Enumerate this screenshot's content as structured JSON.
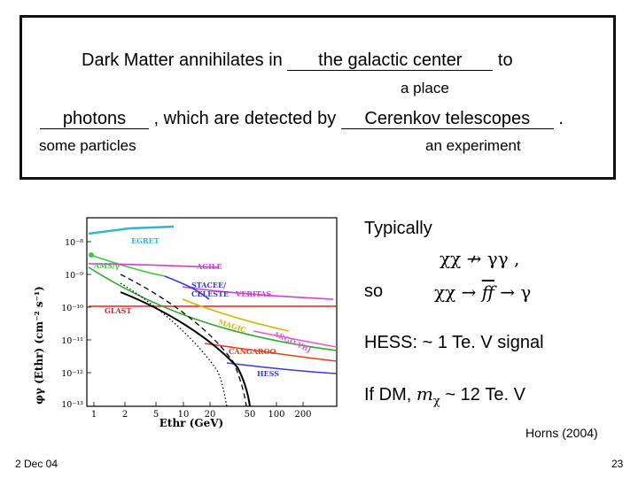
{
  "box": {
    "line1_pre": "Dark Matter annihilates in ",
    "blank1": "the galactic center",
    "line1_post": " to",
    "hint1": "a place",
    "blank2": "photons",
    "line2_mid": " , which are detected by ",
    "blank3": "Cerenkov telescopes",
    "line2_post": " .",
    "hint2": "some particles",
    "hint3": "an experiment"
  },
  "right": {
    "typically": "Typically",
    "eq1": "χχ",
    "eq1_arrow": "↛",
    "eq1_rhs": "γγ ,",
    "so": "so",
    "eq2_lhs": "χχ",
    "eq2_arrow1": "→",
    "eq2_mid": "ff",
    "eq2_arrow2": "→",
    "eq2_rhs": "γ",
    "hess": "HESS: ~ 1 Te. V signal",
    "ifdm_pre": "If DM,",
    "ifdm_m": "m",
    "ifdm_sub": "χ",
    "ifdm_post": "~ 12 Te. V",
    "citation": "Horns (2004)"
  },
  "footer": {
    "date": "2 Dec 04",
    "page": "23"
  },
  "plot": {
    "ylabel": "φγ (Ethr) (cm⁻² s⁻¹)",
    "xlabel": "Ethr (GeV)",
    "yticks": [
      "10⁻⁸",
      "10⁻⁹",
      "10⁻¹⁰",
      "10⁻¹¹",
      "10⁻¹²",
      "10⁻¹³"
    ],
    "xticks": [
      "1",
      "2",
      "5",
      "10",
      "20",
      "50",
      "100",
      "200"
    ],
    "labels": {
      "egret": "EGRET",
      "ams": "AMS/γ",
      "agile": "AGILE",
      "stacee": "STACEE/",
      "celeste": "CELESTE",
      "veritas": "VERITAS",
      "glast": "GLAST",
      "magic": "MAGIC",
      "argo": "ARGO-YBJ",
      "cangaroo": "CANGAROO",
      "hess": "HESS"
    },
    "colors": {
      "egret": "#2fb7c9",
      "ams": "#3cc83c",
      "agile": "#d23fd2",
      "stacee": "#3b3bd0",
      "veritas": "#d23fd2",
      "glast": "#e02424",
      "magic": "#d4b800",
      "argo": "#e05fd0",
      "cangaroo": "#e04020",
      "hess": "#3b3bd0",
      "green_curve": "#2ea82e"
    }
  }
}
